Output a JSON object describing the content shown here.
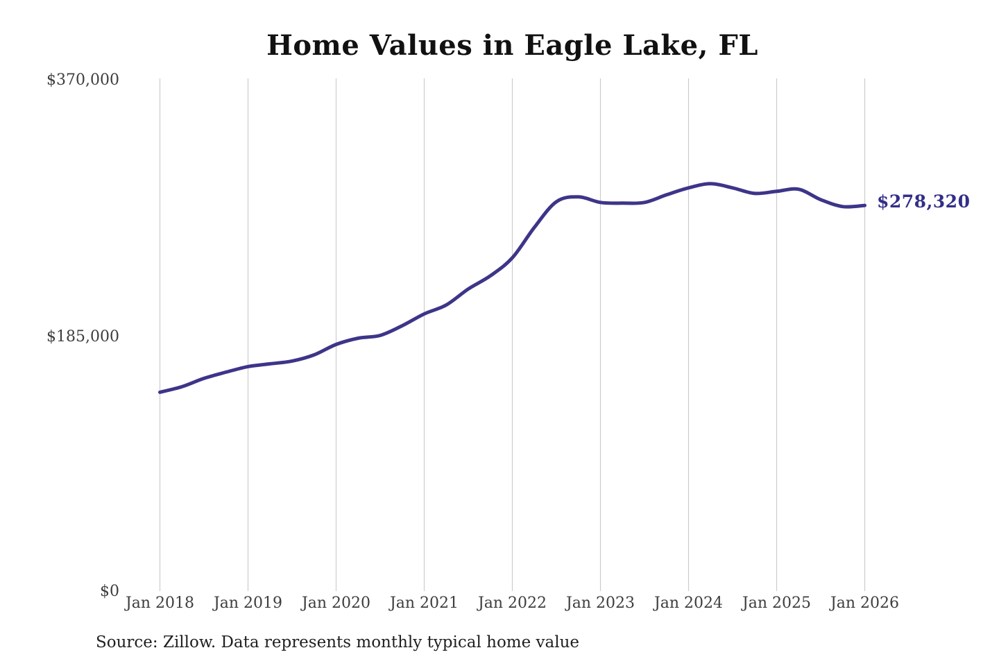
{
  "chart_data": {
    "type": "line",
    "title": "Home Values in Eagle Lake, FL",
    "xlabel": "",
    "ylabel": "",
    "ylim": [
      0,
      370000
    ],
    "y_ticks": [
      "$370,000",
      "$185,000",
      "$0"
    ],
    "x_ticks": [
      "Jan 2018",
      "Jan 2019",
      "Jan 2020",
      "Jan 2021",
      "Jan 2022",
      "Jan 2023",
      "Jan 2024",
      "Jan 2025",
      "Jan 2026"
    ],
    "grid": "vertical gridlines only, no axis lines",
    "legend": "none",
    "series": [
      {
        "name": "Monthly typical home value",
        "points": [
          {
            "date": "2018-01",
            "value": 143500
          },
          {
            "date": "2018-04",
            "value": 147500
          },
          {
            "date": "2018-07",
            "value": 153500
          },
          {
            "date": "2018-10",
            "value": 158000
          },
          {
            "date": "2019-01",
            "value": 162000
          },
          {
            "date": "2019-04",
            "value": 164000
          },
          {
            "date": "2019-07",
            "value": 166000
          },
          {
            "date": "2019-10",
            "value": 170500
          },
          {
            "date": "2020-01",
            "value": 178000
          },
          {
            "date": "2020-04",
            "value": 182500
          },
          {
            "date": "2020-07",
            "value": 184500
          },
          {
            "date": "2020-10",
            "value": 191500
          },
          {
            "date": "2021-01",
            "value": 200000
          },
          {
            "date": "2021-04",
            "value": 206500
          },
          {
            "date": "2021-07",
            "value": 218000
          },
          {
            "date": "2021-10",
            "value": 227500
          },
          {
            "date": "2022-01",
            "value": 240500
          },
          {
            "date": "2022-04",
            "value": 262500
          },
          {
            "date": "2022-07",
            "value": 281000
          },
          {
            "date": "2022-10",
            "value": 284500
          },
          {
            "date": "2023-01",
            "value": 280500
          },
          {
            "date": "2023-04",
            "value": 280000
          },
          {
            "date": "2023-07",
            "value": 280500
          },
          {
            "date": "2023-10",
            "value": 286000
          },
          {
            "date": "2024-01",
            "value": 291000
          },
          {
            "date": "2024-04",
            "value": 294000
          },
          {
            "date": "2024-07",
            "value": 291000
          },
          {
            "date": "2024-10",
            "value": 287000
          },
          {
            "date": "2025-01",
            "value": 288500
          },
          {
            "date": "2025-04",
            "value": 290000
          },
          {
            "date": "2025-07",
            "value": 282500
          },
          {
            "date": "2025-10",
            "value": 277500
          },
          {
            "date": "2026-01",
            "value": 278320
          }
        ]
      }
    ],
    "annotations": {
      "end_value_label": "$278,320"
    },
    "source_note": "Source: Zillow. Data represents monthly typical home value"
  },
  "colors": {
    "line": "#3d3589",
    "end_label": "#332e87",
    "gridline": "#cccccc",
    "title_text": "#111111",
    "tick_text": "#3d3d3d",
    "source_text": "#1f1f1f"
  }
}
